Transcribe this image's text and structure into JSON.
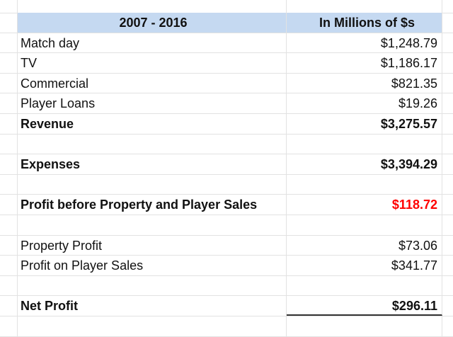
{
  "header": {
    "period": "2007 - 2016",
    "units": "In Millions of $s"
  },
  "rows": [
    {
      "label": "Match day",
      "value": "$1,248.79",
      "bold": false
    },
    {
      "label": "TV",
      "value": "$1,186.17",
      "bold": false
    },
    {
      "label": "Commercial",
      "value": "$821.35",
      "bold": false
    },
    {
      "label": "Player Loans",
      "value": "$19.26",
      "bold": false
    },
    {
      "label": "Revenue",
      "value": "$3,275.57",
      "bold": true
    },
    {
      "label": "",
      "value": ""
    },
    {
      "label": "Expenses",
      "value": "$3,394.29",
      "bold": true
    },
    {
      "label": "",
      "value": ""
    },
    {
      "label": "Profit before Property and Player Sales",
      "value": "$118.72",
      "bold": true,
      "value_color": "#ff0000"
    },
    {
      "label": "",
      "value": ""
    },
    {
      "label": "Property Profit",
      "value": "$73.06",
      "bold": false
    },
    {
      "label": "Profit on Player Sales",
      "value": "$341.77",
      "bold": false
    },
    {
      "label": "",
      "value": ""
    },
    {
      "label": "Net Profit",
      "value": "$296.11",
      "bold": true,
      "underline": true
    },
    {
      "label": "",
      "value": ""
    }
  ],
  "colors": {
    "header_bg": "#c5d9f1",
    "negative": "#ff0000",
    "gridline": "#e2e2e2"
  }
}
